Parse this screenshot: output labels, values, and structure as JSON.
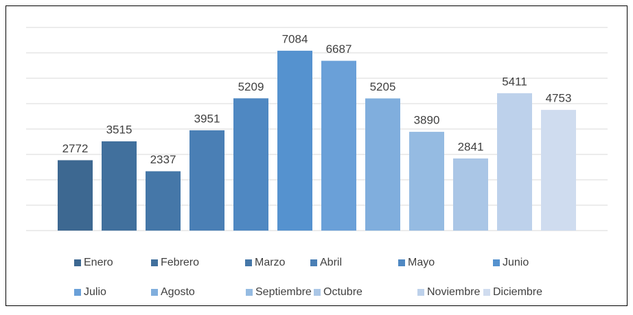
{
  "chart_data": {
    "type": "bar",
    "categories": [
      null
    ],
    "series": [
      {
        "name": "Enero",
        "color": "#3d6891",
        "values": [
          2772
        ]
      },
      {
        "name": "Febrero",
        "color": "#41709d",
        "values": [
          3515
        ]
      },
      {
        "name": "Marzo",
        "color": "#4577a8",
        "values": [
          2337
        ]
      },
      {
        "name": "Abril",
        "color": "#4a7fb5",
        "values": [
          3951
        ]
      },
      {
        "name": "Mayo",
        "color": "#4f88c2",
        "values": [
          5209
        ]
      },
      {
        "name": "Junio",
        "color": "#5592cf",
        "values": [
          7084
        ]
      },
      {
        "name": "Julio",
        "color": "#6aa0d8",
        "values": [
          6687
        ]
      },
      {
        "name": "Agosto",
        "color": "#80aedd",
        "values": [
          5205
        ]
      },
      {
        "name": "Septiembre",
        "color": "#95bbe2",
        "values": [
          3890
        ]
      },
      {
        "name": "Octubre",
        "color": "#aac6e6",
        "values": [
          2841
        ]
      },
      {
        "name": "Noviembre",
        "color": "#bdd1eb",
        "values": [
          5411
        ]
      },
      {
        "name": "Diciembre",
        "color": "#cfdcef",
        "values": [
          4753
        ]
      }
    ],
    "ylim": [
      0,
      8000
    ],
    "yticks": [
      0,
      1000,
      2000,
      3000,
      4000,
      5000,
      6000,
      7000,
      8000
    ],
    "grid": true,
    "legend": "bottom"
  }
}
